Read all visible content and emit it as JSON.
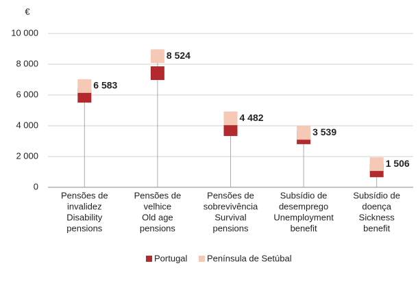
{
  "chart_data": {
    "type": "dot",
    "y_unit": "€",
    "categories": [
      [
        "Pensões de",
        "invalidez",
        "Disability",
        "pensions"
      ],
      [
        "Pensões de",
        "velhice",
        "Old age",
        "pensions"
      ],
      [
        "Pensões de",
        "sobrevivência",
        "Survival",
        "pensions"
      ],
      [
        "Subsídio de",
        "desemprego",
        "Unemployment",
        "benefit"
      ],
      [
        "Subsídio de",
        "doença",
        "Sickness",
        "benefit"
      ]
    ],
    "series": [
      {
        "name": "Portugal",
        "color": "#b22a2e",
        "values": [
          5950,
          7420,
          3780,
          3250,
          1100
        ]
      },
      {
        "name": "Península de Setúbal",
        "color": "#f6c8b6",
        "values": [
          6583,
          8524,
          4482,
          3539,
          1506
        ],
        "value_labels": [
          "6 583",
          "8 524",
          "4 482",
          "3 539",
          "1 506"
        ]
      }
    ],
    "ylim": [
      0,
      10000
    ],
    "yticks": [
      0,
      {
        "value": 2000,
        "label": "2 000"
      },
      {
        "value": 4000,
        "label": "4 000"
      },
      {
        "value": 6000,
        "label": "6 000"
      },
      {
        "value": 8000,
        "label": "8 000"
      },
      {
        "value": 10000,
        "label": "10 000"
      }
    ],
    "grid": true,
    "legend": "bottom"
  }
}
